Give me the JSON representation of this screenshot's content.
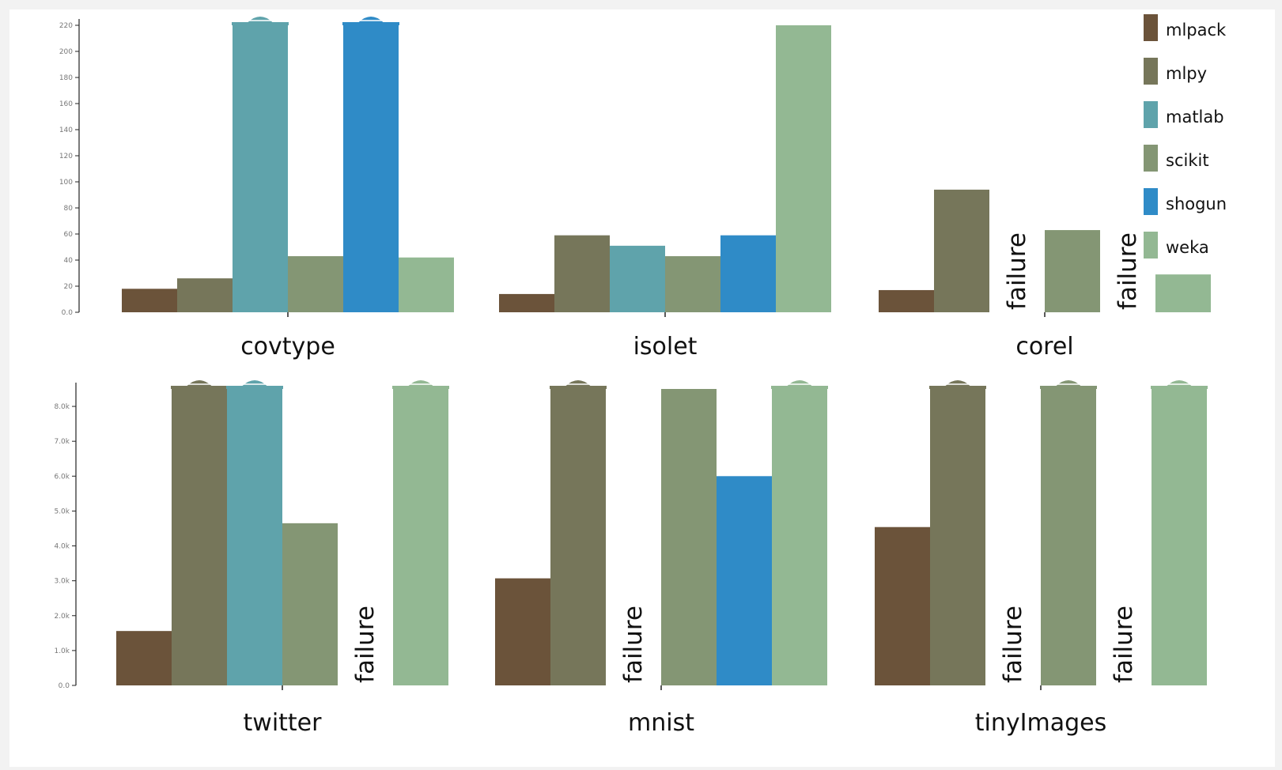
{
  "legend": [
    {
      "name": "mlpack",
      "color": "#6b533a"
    },
    {
      "name": "mlpy",
      "color": "#76765a"
    },
    {
      "name": "matlab",
      "color": "#5fa3ab"
    },
    {
      "name": "scikit",
      "color": "#849674"
    },
    {
      "name": "shogun",
      "color": "#2f8bc7"
    },
    {
      "name": "weka",
      "color": "#93b893"
    }
  ],
  "failure_label": "failure",
  "chart_data": [
    {
      "type": "bar",
      "xlabel": "",
      "ylabel": "",
      "grid": false,
      "legend_placement": "top-right",
      "ylim": [
        0,
        220
      ],
      "yticks": [
        0,
        20,
        40,
        60,
        80,
        100,
        120,
        140,
        160,
        180,
        200,
        220
      ],
      "ytick_labels": [
        "0.0",
        "20",
        "40",
        "60",
        "80",
        "100",
        "120",
        "140",
        "160",
        "180",
        "200",
        "220"
      ],
      "categories": [
        "covtype",
        "isolet",
        "corel"
      ],
      "series": [
        {
          "name": "mlpack",
          "values": [
            18,
            14,
            17
          ],
          "clipped": [
            false,
            false,
            false
          ],
          "failed": [
            false,
            false,
            false
          ]
        },
        {
          "name": "mlpy",
          "values": [
            26,
            59,
            94
          ],
          "clipped": [
            false,
            false,
            false
          ],
          "failed": [
            false,
            false,
            false
          ]
        },
        {
          "name": "matlab",
          "values": [
            220,
            51,
            null
          ],
          "clipped": [
            true,
            false,
            false
          ],
          "failed": [
            false,
            false,
            true
          ]
        },
        {
          "name": "scikit",
          "values": [
            43,
            43,
            63
          ],
          "clipped": [
            false,
            false,
            false
          ],
          "failed": [
            false,
            false,
            false
          ]
        },
        {
          "name": "shogun",
          "values": [
            220,
            59,
            null
          ],
          "clipped": [
            true,
            false,
            false
          ],
          "failed": [
            false,
            false,
            true
          ]
        },
        {
          "name": "weka",
          "values": [
            42,
            220,
            29
          ],
          "clipped": [
            false,
            false,
            false
          ],
          "failed": [
            false,
            false,
            false
          ]
        }
      ]
    },
    {
      "type": "bar",
      "xlabel": "",
      "ylabel": "",
      "grid": false,
      "ylim": [
        0,
        8500
      ],
      "yticks": [
        0,
        1000,
        2000,
        3000,
        4000,
        5000,
        6000,
        7000,
        8000
      ],
      "ytick_labels": [
        "0.0",
        "1.0k",
        "2.0k",
        "3.0k",
        "4.0k",
        "5.0k",
        "6.0k",
        "7.0k",
        "8.0k"
      ],
      "categories": [
        "twitter",
        "mnist",
        "tinyImages"
      ],
      "series": [
        {
          "name": "mlpack",
          "values": [
            1560,
            3070,
            4540
          ],
          "clipped": [
            false,
            false,
            false
          ],
          "failed": [
            false,
            false,
            false
          ]
        },
        {
          "name": "mlpy",
          "values": [
            8500,
            8500,
            8500
          ],
          "clipped": [
            true,
            true,
            true
          ],
          "failed": [
            false,
            false,
            false
          ]
        },
        {
          "name": "matlab",
          "values": [
            8500,
            null,
            null
          ],
          "clipped": [
            true,
            false,
            false
          ],
          "failed": [
            false,
            true,
            true
          ]
        },
        {
          "name": "scikit",
          "values": [
            4650,
            8500,
            8500
          ],
          "clipped": [
            false,
            false,
            true
          ],
          "failed": [
            false,
            false,
            false
          ]
        },
        {
          "name": "shogun",
          "values": [
            null,
            6000,
            null
          ],
          "clipped": [
            false,
            false,
            false
          ],
          "failed": [
            true,
            false,
            true
          ]
        },
        {
          "name": "weka",
          "values": [
            8500,
            8500,
            8500
          ],
          "clipped": [
            true,
            true,
            true
          ],
          "failed": [
            false,
            false,
            false
          ]
        }
      ]
    }
  ]
}
